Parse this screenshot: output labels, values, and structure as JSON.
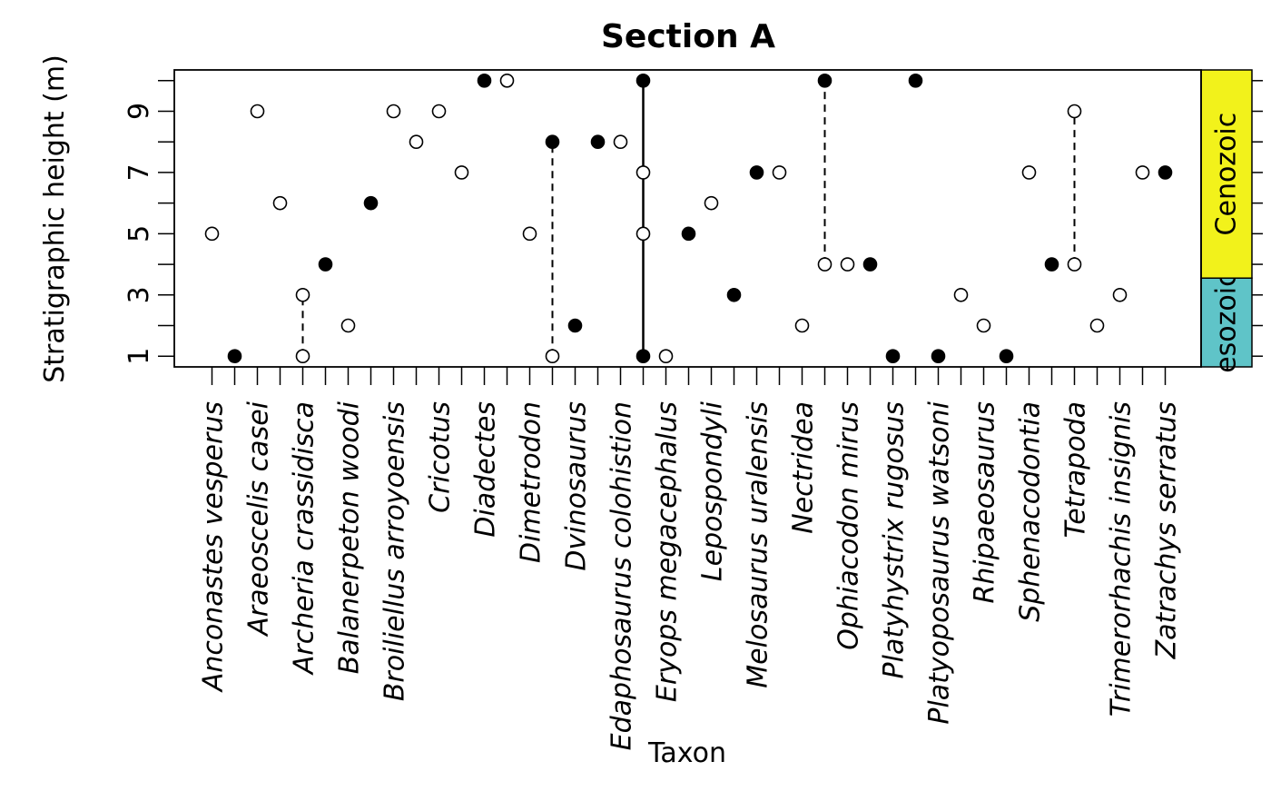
{
  "chart_data": {
    "type": "scatter",
    "title": "Section A",
    "xlabel": "Taxon",
    "ylabel": "Stratigraphic height (m)",
    "ylim": [
      0.65,
      10.35
    ],
    "yticks": [
      1,
      2,
      3,
      4,
      5,
      6,
      7,
      8,
      9,
      10
    ],
    "ytick_labels": [
      "1",
      "",
      "3",
      "",
      "5",
      "",
      "7",
      "",
      "9",
      ""
    ],
    "taxa": [
      "Anconastes vesperus",
      "Araeoscelis casei",
      "Archeria crassidisca",
      "Balanerpeton woodi",
      "Broiliellus arroyoensis",
      "Cricotus",
      "Diadectes",
      "Dimetrodon",
      "Dvinosaurus",
      "Edaphosaurus colohistion",
      "Eryops megacephalus",
      "Lepospondyli",
      "Melosaurus uralensis",
      "Nectridea",
      "Ophiacodon mirus",
      "Platyhystrix rugosus",
      "Platyoposaurus watsoni",
      "Rhipaeosaurus",
      "Sphenacodontia",
      "Tetrapoda",
      "Trimerorhachis insignis",
      "Zatrachys serratus"
    ],
    "points": [
      {
        "slot": 1,
        "y": 5,
        "filled": false
      },
      {
        "slot": 2,
        "y": 1,
        "filled": true
      },
      {
        "slot": 3,
        "y": 9,
        "filled": false
      },
      {
        "slot": 4,
        "y": 6,
        "filled": false
      },
      {
        "slot": 5,
        "y": 3,
        "filled": false
      },
      {
        "slot": 5,
        "y": 1,
        "filled": false
      },
      {
        "slot": 6,
        "y": 4,
        "filled": true
      },
      {
        "slot": 7,
        "y": 2,
        "filled": false
      },
      {
        "slot": 8,
        "y": 6,
        "filled": true
      },
      {
        "slot": 9,
        "y": 9,
        "filled": false
      },
      {
        "slot": 10,
        "y": 8,
        "filled": false
      },
      {
        "slot": 11,
        "y": 9,
        "filled": false
      },
      {
        "slot": 12,
        "y": 7,
        "filled": false
      },
      {
        "slot": 13,
        "y": 10,
        "filled": true
      },
      {
        "slot": 14,
        "y": 10,
        "filled": false
      },
      {
        "slot": 15,
        "y": 5,
        "filled": false
      },
      {
        "slot": 16,
        "y": 8,
        "filled": true
      },
      {
        "slot": 16,
        "y": 1,
        "filled": false
      },
      {
        "slot": 17,
        "y": 2,
        "filled": true
      },
      {
        "slot": 18,
        "y": 8,
        "filled": true
      },
      {
        "slot": 19,
        "y": 8,
        "filled": false
      },
      {
        "slot": 20,
        "y": 10,
        "filled": true
      },
      {
        "slot": 20,
        "y": 7,
        "filled": false
      },
      {
        "slot": 20,
        "y": 5,
        "filled": false
      },
      {
        "slot": 20,
        "y": 1,
        "filled": true
      },
      {
        "slot": 21,
        "y": 1,
        "filled": false
      },
      {
        "slot": 22,
        "y": 5,
        "filled": true
      },
      {
        "slot": 23,
        "y": 6,
        "filled": false
      },
      {
        "slot": 24,
        "y": 3,
        "filled": true
      },
      {
        "slot": 25,
        "y": 7,
        "filled": true
      },
      {
        "slot": 26,
        "y": 7,
        "filled": false
      },
      {
        "slot": 27,
        "y": 2,
        "filled": false
      },
      {
        "slot": 28,
        "y": 10,
        "filled": true
      },
      {
        "slot": 28,
        "y": 4,
        "filled": false
      },
      {
        "slot": 29,
        "y": 4,
        "filled": false
      },
      {
        "slot": 30,
        "y": 4,
        "filled": true
      },
      {
        "slot": 31,
        "y": 1,
        "filled": true
      },
      {
        "slot": 32,
        "y": 10,
        "filled": true
      },
      {
        "slot": 33,
        "y": 1,
        "filled": true
      },
      {
        "slot": 34,
        "y": 3,
        "filled": false
      },
      {
        "slot": 35,
        "y": 2,
        "filled": false
      },
      {
        "slot": 36,
        "y": 1,
        "filled": true
      },
      {
        "slot": 37,
        "y": 7,
        "filled": false
      },
      {
        "slot": 38,
        "y": 4,
        "filled": true
      },
      {
        "slot": 39,
        "y": 9,
        "filled": false
      },
      {
        "slot": 39,
        "y": 4,
        "filled": false
      },
      {
        "slot": 40,
        "y": 2,
        "filled": false
      },
      {
        "slot": 41,
        "y": 3,
        "filled": false
      },
      {
        "slot": 42,
        "y": 7,
        "filled": false
      },
      {
        "slot": 43,
        "y": 7,
        "filled": true
      }
    ],
    "ranges": [
      {
        "slot": 5,
        "from": 1,
        "to": 3,
        "style": "dashed"
      },
      {
        "slot": 16,
        "from": 1,
        "to": 8,
        "style": "dashed"
      },
      {
        "slot": 20,
        "from": 1,
        "to": 10,
        "style": "solid"
      },
      {
        "slot": 28,
        "from": 4,
        "to": 10,
        "style": "dashed"
      },
      {
        "slot": 39,
        "from": 4,
        "to": 9,
        "style": "dashed"
      }
    ],
    "eras": [
      {
        "name": "Mesozoic",
        "label": "esozoic",
        "from": 0.65,
        "to": 3.55,
        "color": "#5fc4c8"
      },
      {
        "name": "Cenozoic",
        "label": "Cenozoic",
        "from": 3.55,
        "to": 10.35,
        "color": "#f2f21b"
      }
    ],
    "colors": {
      "filled": "#000000",
      "open": "#ffffff",
      "stroke": "#000000"
    }
  }
}
